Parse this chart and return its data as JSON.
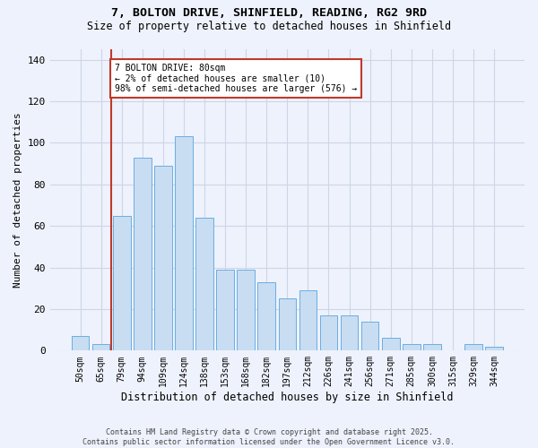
{
  "title_line1": "7, BOLTON DRIVE, SHINFIELD, READING, RG2 9RD",
  "title_line2": "Size of property relative to detached houses in Shinfield",
  "xlabel": "Distribution of detached houses by size in Shinfield",
  "ylabel": "Number of detached properties",
  "footer": "Contains HM Land Registry data © Crown copyright and database right 2025.\nContains public sector information licensed under the Open Government Licence v3.0.",
  "categories": [
    "50sqm",
    "65sqm",
    "79sqm",
    "94sqm",
    "109sqm",
    "124sqm",
    "138sqm",
    "153sqm",
    "168sqm",
    "182sqm",
    "197sqm",
    "212sqm",
    "226sqm",
    "241sqm",
    "256sqm",
    "271sqm",
    "285sqm",
    "300sqm",
    "315sqm",
    "329sqm",
    "344sqm"
  ],
  "values": [
    7,
    3,
    65,
    93,
    89,
    103,
    64,
    39,
    39,
    33,
    25,
    29,
    17,
    17,
    14,
    6,
    3,
    3,
    0,
    3,
    2
  ],
  "bar_color": "#c8ddf2",
  "bar_edge_color": "#6aaee0",
  "vline_index": 2,
  "vline_color": "#c0392b",
  "annotation_text": "7 BOLTON DRIVE: 80sqm\n← 2% of detached houses are smaller (10)\n98% of semi-detached houses are larger (576) →",
  "annotation_box_color": "white",
  "annotation_box_edgecolor": "#c0392b",
  "background_color": "#eef2fc",
  "grid_color": "#cdd5e8",
  "ylim": [
    0,
    145
  ],
  "yticks": [
    0,
    20,
    40,
    60,
    80,
    100,
    120,
    140
  ]
}
